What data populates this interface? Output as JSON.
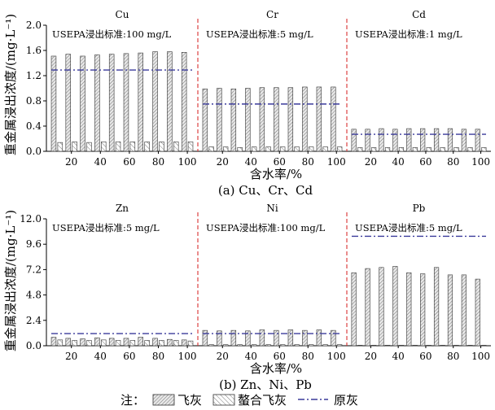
{
  "chart_data": [
    {
      "type": "bar",
      "caption": "(a) Cu、Cr、Cd",
      "ylabel": "重金属浸出浓度/(mg·L⁻¹)",
      "xlabel": "含水率/%",
      "ylim": [
        0,
        2.0
      ],
      "yticks": [
        "0.0",
        "0.4",
        "0.8",
        "1.2",
        "1.6",
        "2.0"
      ],
      "panels": [
        {
          "element": "Cu",
          "standard_label": "USEPA浸出标准:100 mg/L",
          "x": [
            10,
            20,
            30,
            40,
            50,
            60,
            70,
            80,
            90,
            100
          ],
          "xticks": [
            "20",
            "40",
            "60",
            "80",
            "100"
          ],
          "raw_ash": 1.29,
          "series": [
            {
              "name": "飞灰",
              "values": [
                1.51,
                1.54,
                1.51,
                1.53,
                1.54,
                1.55,
                1.56,
                1.58,
                1.58,
                1.57
              ]
            },
            {
              "name": "螯合飞灰",
              "values": [
                0.14,
                0.15,
                0.14,
                0.15,
                0.15,
                0.15,
                0.15,
                0.15,
                0.15,
                0.15
              ]
            }
          ]
        },
        {
          "element": "Cr",
          "standard_label": "USEPA浸出标准:5 mg/L",
          "x": [
            10,
            20,
            30,
            40,
            50,
            60,
            70,
            80,
            90,
            100
          ],
          "xticks": [
            "20",
            "40",
            "60",
            "80",
            "100"
          ],
          "raw_ash": 0.75,
          "series": [
            {
              "name": "飞灰",
              "values": [
                0.99,
                1.0,
                0.99,
                1.0,
                1.01,
                1.01,
                1.01,
                1.02,
                1.02,
                1.02
              ]
            },
            {
              "name": "螯合飞灰",
              "values": [
                0.07,
                0.07,
                0.06,
                0.07,
                0.07,
                0.07,
                0.07,
                0.07,
                0.07,
                0.07
              ]
            }
          ]
        },
        {
          "element": "Cd",
          "standard_label": "USEPA浸出标准:1 mg/L",
          "x": [
            10,
            20,
            30,
            40,
            50,
            60,
            70,
            80,
            90,
            100
          ],
          "xticks": [
            "20",
            "40",
            "60",
            "80",
            "100"
          ],
          "raw_ash": 0.27,
          "series": [
            {
              "name": "飞灰",
              "values": [
                0.35,
                0.35,
                0.36,
                0.35,
                0.36,
                0.36,
                0.36,
                0.36,
                0.35,
                0.35
              ]
            },
            {
              "name": "螯合飞灰",
              "values": [
                0.06,
                0.06,
                0.06,
                0.06,
                0.06,
                0.06,
                0.06,
                0.06,
                0.06,
                0.06
              ]
            }
          ]
        }
      ]
    },
    {
      "type": "bar",
      "caption": "(b) Zn、Ni、Pb",
      "ylabel": "重金属浸出浓度/(mg·L⁻¹)",
      "xlabel": "含水率/%",
      "ylim": [
        0,
        12.0
      ],
      "yticks": [
        "0.0",
        "2.4",
        "4.8",
        "7.2",
        "9.6",
        "12.0"
      ],
      "panels": [
        {
          "element": "Zn",
          "standard_label": "USEPA浸出标准:5 mg/L",
          "x": [
            10,
            20,
            30,
            40,
            50,
            60,
            70,
            80,
            90,
            100
          ],
          "xticks": [
            "20",
            "40",
            "60",
            "80",
            "100"
          ],
          "raw_ash": 1.15,
          "series": [
            {
              "name": "飞灰",
              "values": [
                0.8,
                0.7,
                0.65,
                0.75,
                0.7,
                0.7,
                0.8,
                0.7,
                0.6,
                0.55
              ]
            },
            {
              "name": "螯合飞灰",
              "values": [
                0.55,
                0.5,
                0.5,
                0.55,
                0.5,
                0.5,
                0.5,
                0.5,
                0.5,
                0.45
              ]
            }
          ]
        },
        {
          "element": "Ni",
          "standard_label": "USEPA浸出标准:100 mg/L",
          "x": [
            10,
            20,
            30,
            40,
            50,
            60,
            70,
            80,
            90,
            100
          ],
          "xticks": [
            "20",
            "40",
            "60",
            "80",
            "100"
          ],
          "raw_ash": 1.15,
          "series": [
            {
              "name": "飞灰",
              "values": [
                1.45,
                1.4,
                1.45,
                1.4,
                1.5,
                1.45,
                1.5,
                1.45,
                1.5,
                1.45
              ]
            },
            {
              "name": "螯合飞灰",
              "values": [
                0.1,
                0.1,
                0.1,
                0.1,
                0.1,
                0.1,
                0.1,
                0.1,
                0.1,
                0.1
              ]
            }
          ]
        },
        {
          "element": "Pb",
          "standard_label": "USEPA浸出标准:5 mg/L",
          "x": [
            10,
            20,
            30,
            40,
            50,
            60,
            70,
            80,
            90,
            100
          ],
          "xticks": [
            "20",
            "40",
            "60",
            "80",
            "100"
          ],
          "raw_ash": 10.35,
          "series": [
            {
              "name": "飞灰",
              "values": [
                6.9,
                7.3,
                7.4,
                7.5,
                6.9,
                6.8,
                7.4,
                6.7,
                6.7,
                6.3
              ]
            },
            {
              "name": "螯合飞灰",
              "values": [
                0.05,
                0.05,
                0.05,
                0.05,
                0.05,
                0.05,
                0.05,
                0.05,
                0.05,
                0.05
              ]
            }
          ]
        }
      ]
    }
  ],
  "legend": {
    "prefix": "注：",
    "items": [
      "飞灰",
      "螯合飞灰",
      "原灰"
    ]
  },
  "colors": {
    "separator": "#d93030",
    "raw_line": "#3a3a9a",
    "bar_fill": "#e6e6e6",
    "bar_stroke": "#333333"
  }
}
